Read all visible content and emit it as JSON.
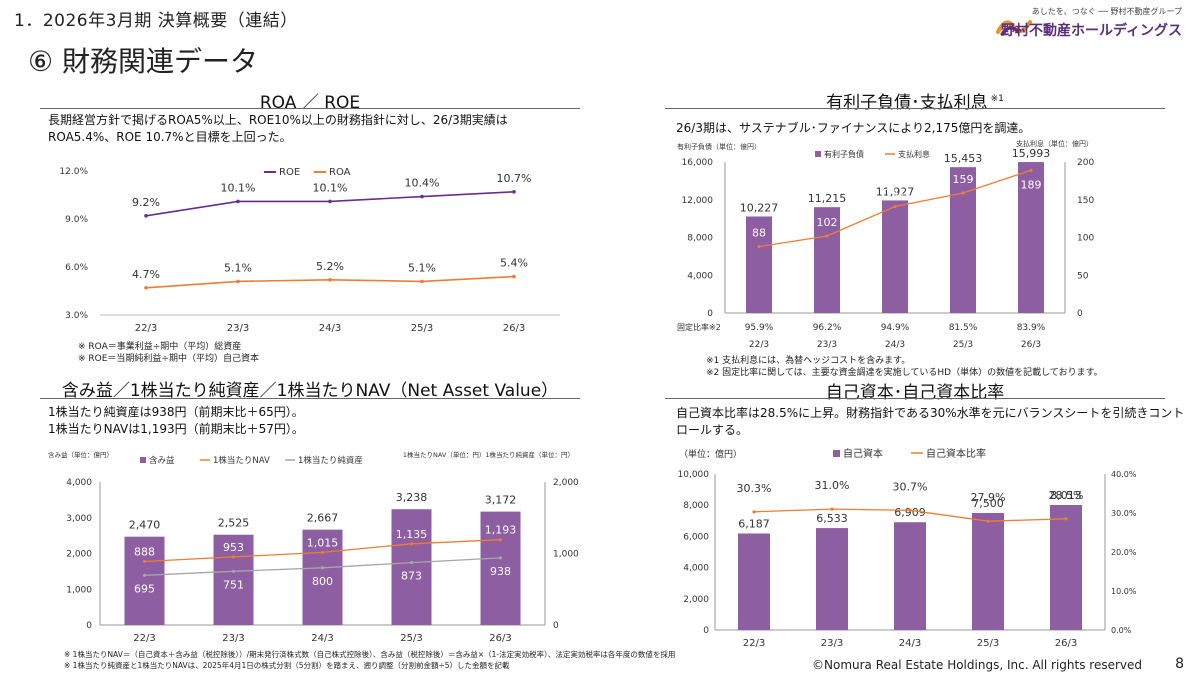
{
  "header": {
    "section": "1．2026年3月期 決算概要（連結）",
    "title": "⑥ 財務関連データ"
  },
  "logo": {
    "tagline": "あしたを、つなぐ ── 野村不動産グループ",
    "name": "野村不動産ホールディングス"
  },
  "roa_roe": {
    "title": "ROA ／ ROE",
    "description": [
      "長期経営方針で掲げるROA5%以上、ROE10%以上の財務指針に対し、26/3期実績は",
      "ROA5.4%、ROE 10.7%と目標を上回った。"
    ],
    "notes": [
      "※ ROA＝事業利益÷期中（平均）総資産",
      "※ ROE＝当期純利益÷期中（平均）自己資本"
    ]
  },
  "debt": {
    "title": "有利子負債･支払利息",
    "title_mark": "※1",
    "description": "26/3期は、サステナブル･ファイナンスにより2,175億円を調達。",
    "left_unit": "有利子負債（単位：億円）",
    "right_unit": "支払利息（単位：億円）",
    "fixed_label": "固定比率※2",
    "fixed_ratio": [
      "95.9%",
      "96.2%",
      "94.9%",
      "81.5%",
      "83.9%"
    ],
    "notes": [
      "※1 支払利息には、為替ヘッジコストを含みます。",
      "※2 固定比率に関しては、主要な資金調達を実施しているHD（単体）の数値を記載しております。"
    ]
  },
  "nav": {
    "title": "含み益／1株当たり純資産／1株当たりNAV（Net Asset Value）",
    "description": [
      "1株当たり純資産は938円（前期末比＋65円）。",
      "1株当たりNAVは1,193円（前期末比＋57円）。"
    ],
    "left_unit": "含み益（単位：億円）",
    "right_unit": "1株当たりNAV（単位：円）1株当たり純資産（単位：円）",
    "notes": [
      "※ 1株当たりNAV＝（自己資本＋含み益（税控除後））/期末発行済株式数（自己株式控除後）、含み益（税控除後）＝含み益×（1-法定実効税率）、法定実効税率は各年度の数値を採用",
      "※ 1株当たり純資産と1株当たりNAVは、2025年4月1日の株式分割（5分割）を踏まえ、遡り調整（分割前金額÷5）した金額を記載"
    ]
  },
  "equity": {
    "title": "自己資本･自己資本比率",
    "description": [
      "自己資本比率は28.5%に上昇。財務指針である30%水準を元にバランスシートを引続きコント",
      "ロールする。"
    ],
    "left_unit": "（単位：億円）"
  },
  "footer": {
    "copyright": "©Nomura Real Estate Holdings, Inc. All rights reserved",
    "page": "8"
  },
  "colors": {
    "purple_line": "#6a2c8e",
    "orange_line": "#ed7d31",
    "bar": "#8e5ea2",
    "gray_line": "#a6a6a6"
  },
  "chart_data": [
    {
      "id": "roa_roe",
      "type": "line",
      "categories": [
        "22/3",
        "23/3",
        "24/3",
        "25/3",
        "26/3"
      ],
      "series": [
        {
          "name": "ROE",
          "values": [
            9.2,
            10.1,
            10.1,
            10.4,
            10.7
          ],
          "labels": [
            "9.2%",
            "10.1%",
            "10.1%",
            "10.4%",
            "10.7%"
          ]
        },
        {
          "name": "ROA",
          "values": [
            4.7,
            5.1,
            5.2,
            5.1,
            5.4
          ],
          "labels": [
            "4.7%",
            "5.1%",
            "5.2%",
            "5.1%",
            "5.4%"
          ]
        }
      ],
      "ylim": [
        3.0,
        12.0
      ],
      "yticks": [
        "3.0%",
        "6.0%",
        "9.0%",
        "12.0%"
      ],
      "grid": false,
      "legend": "top-center"
    },
    {
      "id": "debt_interest",
      "type": "bar",
      "categories": [
        "22/3",
        "23/3",
        "24/3",
        "25/3",
        "26/3"
      ],
      "series": [
        {
          "name": "有利子負債",
          "type": "bar",
          "axis": "left",
          "values": [
            10227,
            11215,
            11927,
            15453,
            15993
          ],
          "labels": [
            "10,227",
            "11,215",
            "11,927",
            "15,453",
            "15,993"
          ]
        },
        {
          "name": "支払利息",
          "type": "line",
          "axis": "right",
          "values": [
            88,
            102,
            141,
            159,
            189
          ],
          "labels": [
            "88",
            "102",
            "141",
            "159",
            "189"
          ]
        }
      ],
      "ylim_left": [
        0,
        16000
      ],
      "yticks_left": [
        "0",
        "4,000",
        "8,000",
        "12,000",
        "16,000"
      ],
      "ylim_right": [
        0,
        200
      ],
      "yticks_right": [
        "0",
        "50",
        "100",
        "150",
        "200"
      ],
      "legend": "top-center"
    },
    {
      "id": "unrealized_gain_nav",
      "type": "bar",
      "categories": [
        "22/3",
        "23/3",
        "24/3",
        "25/3",
        "26/3"
      ],
      "series": [
        {
          "name": "含み益",
          "type": "bar",
          "axis": "left",
          "values": [
            2470,
            2525,
            2667,
            3238,
            3172
          ],
          "labels": [
            "2,470",
            "2,525",
            "2,667",
            "3,238",
            "3,172"
          ]
        },
        {
          "name": "1株当たりNAV",
          "type": "line",
          "axis": "right",
          "values": [
            888,
            953,
            1015,
            1135,
            1193
          ],
          "labels": [
            "888",
            "953",
            "1,015",
            "1,135",
            "1,193"
          ]
        },
        {
          "name": "1株当たり純資産",
          "type": "line",
          "axis": "right",
          "values": [
            695,
            751,
            800,
            873,
            938
          ],
          "labels": [
            "695",
            "751",
            "800",
            "873",
            "938"
          ]
        }
      ],
      "ylim_left": [
        0,
        4000
      ],
      "yticks_left": [
        "0",
        "1,000",
        "2,000",
        "3,000",
        "4,000"
      ],
      "ylim_right": [
        0,
        2000
      ],
      "yticks_right": [
        "0",
        "1,000",
        "2,000"
      ],
      "legend": "top-center"
    },
    {
      "id": "equity_ratio",
      "type": "bar",
      "categories": [
        "22/3",
        "23/3",
        "24/3",
        "25/3",
        "26/3"
      ],
      "series": [
        {
          "name": "自己資本",
          "type": "bar",
          "axis": "left",
          "values": [
            6187,
            6533,
            6909,
            7500,
            8013
          ],
          "labels": [
            "6,187",
            "6,533",
            "6,909",
            "7,500",
            "8,013"
          ]
        },
        {
          "name": "自己資本比率",
          "type": "line",
          "axis": "right",
          "values": [
            30.3,
            31.0,
            30.7,
            27.9,
            28.5
          ],
          "labels": [
            "30.3%",
            "31.0%",
            "30.7%",
            "27.9%",
            "28.5%"
          ]
        }
      ],
      "ylim_left": [
        0,
        10000
      ],
      "yticks_left": [
        "0",
        "2,000",
        "4,000",
        "6,000",
        "8,000",
        "10,000"
      ],
      "ylim_right": [
        0,
        40
      ],
      "yticks_right": [
        "0.0%",
        "10.0%",
        "20.0%",
        "30.0%",
        "40.0%"
      ],
      "legend": "top-center"
    }
  ]
}
